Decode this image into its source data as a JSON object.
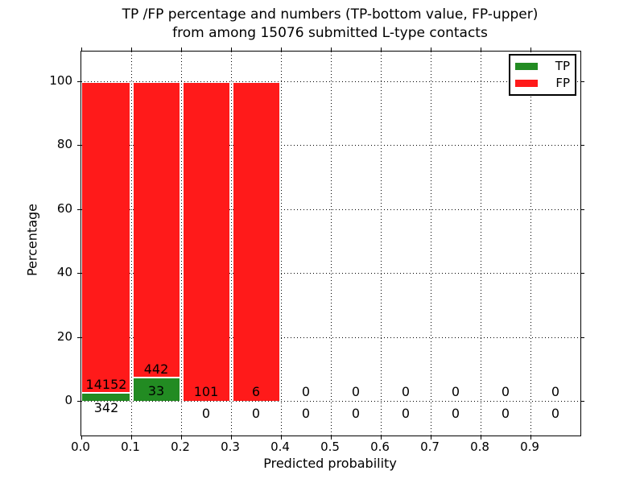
{
  "chart_data": {
    "type": "bar",
    "stacked": true,
    "title": "TP /FP percentage and numbers (TP-bottom value, FP-upper)",
    "subtitle": "from among 15076 submitted L-type contacts",
    "total_submitted": 15076,
    "xlabel": "Predicted probability",
    "ylabel": "Percentage",
    "x_tick_labels": [
      "0.0",
      "0.1",
      "0.2",
      "0.3",
      "0.4",
      "0.5",
      "0.6",
      "0.7",
      "0.8",
      "0.9"
    ],
    "y_ticks": [
      0,
      20,
      40,
      60,
      80,
      100
    ],
    "y_tick_labels": [
      "0",
      "20",
      "40",
      "60",
      "80",
      "100"
    ],
    "xlim": [
      0.0,
      1.0
    ],
    "bin_width": 0.1,
    "categories": [
      "0.0-0.1",
      "0.1-0.2",
      "0.2-0.3",
      "0.3-0.4",
      "0.4-0.5",
      "0.5-0.6",
      "0.6-0.7",
      "0.7-0.8",
      "0.8-0.9",
      "0.9-1.0"
    ],
    "series": [
      {
        "name": "TP",
        "color": "#228b22",
        "counts": [
          342,
          33,
          0,
          0,
          0,
          0,
          0,
          0,
          0,
          0
        ]
      },
      {
        "name": "FP",
        "color": "#ff1a1a",
        "counts": [
          14152,
          442,
          101,
          6,
          0,
          0,
          0,
          0,
          0,
          0
        ]
      }
    ],
    "bar_percentages": {
      "TP": [
        2.36,
        6.95,
        0,
        0,
        0,
        0,
        0,
        0,
        0,
        0
      ],
      "FP": [
        97.64,
        93.05,
        100,
        100,
        0,
        0,
        0,
        0,
        0,
        0
      ]
    },
    "annotations": {
      "upper_fp_counts": [
        "14152",
        "442",
        "101",
        "6",
        "0",
        "0",
        "0",
        "0",
        "0",
        "0"
      ],
      "lower_tp_counts": [
        "342",
        "33",
        "0",
        "0",
        "0",
        "0",
        "0",
        "0",
        "0",
        "0"
      ]
    },
    "legend": {
      "position": "upper right",
      "entries": [
        {
          "label": "TP",
          "color": "#228b22"
        },
        {
          "label": "FP",
          "color": "#ff1a1a"
        }
      ]
    },
    "grid": {
      "style": "dotted",
      "color": "#000000"
    },
    "colors": {
      "tp": "#228b22",
      "fp": "#ff1a1a",
      "background": "#ffffff",
      "text": "#000000"
    }
  }
}
